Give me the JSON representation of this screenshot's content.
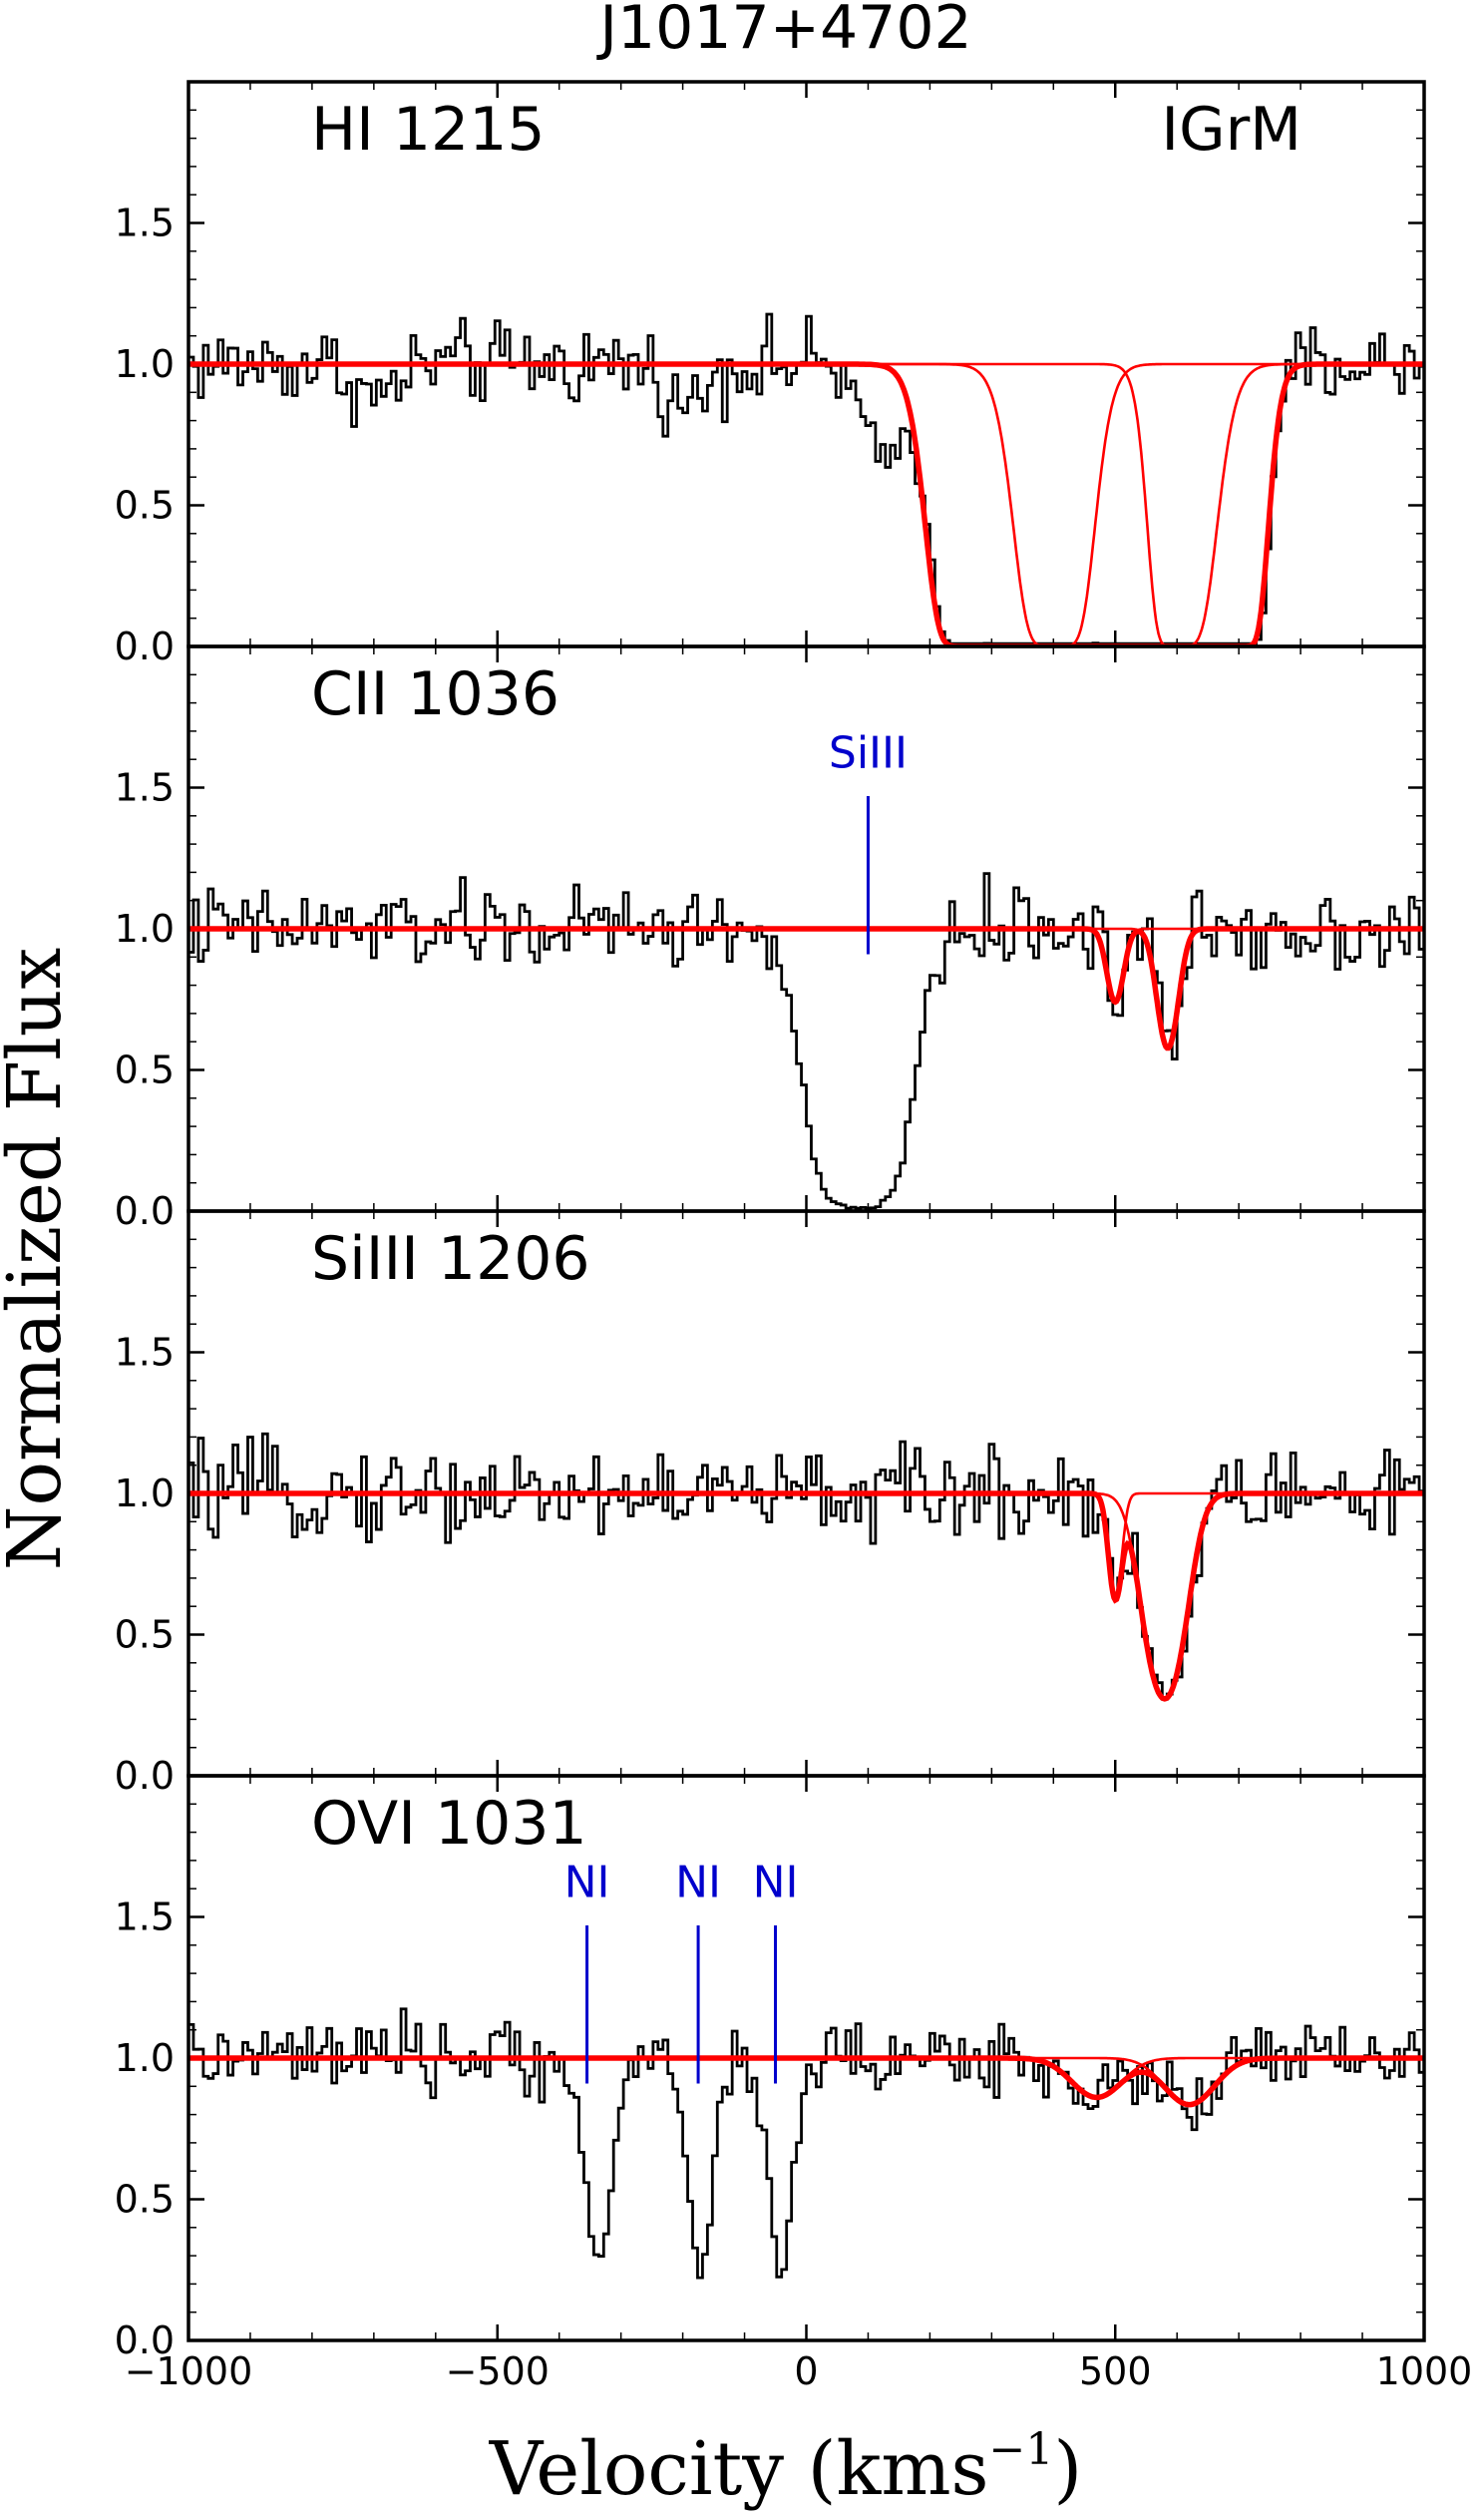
{
  "figure_title": "J1017+4702",
  "ylabel": "Normalized Flux",
  "xlabel": "Velocity (kms",
  "xlabel_sup": "−1",
  "xlabel_close": ")",
  "colors": {
    "data": "#000000",
    "model": "#ff0000",
    "annotation": "#0000cc"
  },
  "chart_data": [
    {
      "type": "line",
      "label": "HI 1215",
      "corner_label": "IGrM",
      "xlim": [
        -1000,
        1000
      ],
      "ylim": [
        0,
        2
      ],
      "yticks": [
        "0.0",
        "0.5",
        "1.0",
        "1.5"
      ],
      "xticks": [],
      "noise": 0.09,
      "absorption_data": [
        {
          "v": -700,
          "depth": 0.12,
          "width": 45
        },
        {
          "v": -200,
          "depth": 0.15,
          "width": 40
        },
        {
          "v": 120,
          "depth": 0.35,
          "width": 45
        }
      ],
      "components": [
        {
          "v": 330,
          "tau": 40,
          "b": 70
        },
        {
          "v": 500,
          "tau": 60,
          "b": 80
        },
        {
          "v": 650,
          "tau": 40,
          "b": 50
        }
      ],
      "markers": []
    },
    {
      "type": "line",
      "label": "CII 1036",
      "corner_label": "",
      "xlim": [
        -1000,
        1000
      ],
      "ylim": [
        0,
        2
      ],
      "yticks": [
        "0.0",
        "0.5",
        "1.0",
        "1.5"
      ],
      "xticks": [],
      "noise": 0.09,
      "absorption_data": [
        {
          "v": 80,
          "depth": 1.0,
          "width": 95,
          "saturated": true
        }
      ],
      "components": [
        {
          "v": 500,
          "tau": 0.3,
          "b": 18
        },
        {
          "v": 585,
          "tau": 0.55,
          "b": 22
        }
      ],
      "markers": [
        {
          "v": 100,
          "label": "SiIII"
        }
      ]
    },
    {
      "type": "line",
      "label": "SiIII 1206",
      "corner_label": "",
      "xlim": [
        -1000,
        1000
      ],
      "ylim": [
        0,
        2
      ],
      "yticks": [
        "0.0",
        "0.5",
        "1.0",
        "1.5"
      ],
      "xticks": [],
      "noise": 0.1,
      "absorption_data": [],
      "components": [
        {
          "v": 500,
          "tau": 0.45,
          "b": 14
        },
        {
          "v": 580,
          "tau": 1.3,
          "b": 40
        }
      ],
      "markers": []
    },
    {
      "type": "line",
      "label": "OVI 1031",
      "corner_label": "",
      "xlim": [
        -1000,
        1000
      ],
      "ylim": [
        0,
        2
      ],
      "yticks": [
        "0.0",
        "0.5",
        "1.0",
        "1.5"
      ],
      "xticks": [
        "−1000",
        "−500",
        "0",
        "500",
        "1000"
      ],
      "xtick_values": [
        -1000,
        -500,
        0,
        500,
        1000
      ],
      "noise": 0.08,
      "absorption_data": [
        {
          "v": -340,
          "depth": 0.75,
          "width": 28
        },
        {
          "v": -175,
          "depth": 0.75,
          "width": 28
        },
        {
          "v": -45,
          "depth": 0.78,
          "width": 26
        }
      ],
      "components": [
        {
          "v": 470,
          "tau": 0.15,
          "b": 55
        },
        {
          "v": 620,
          "tau": 0.18,
          "b": 55
        }
      ],
      "markers": [
        {
          "v": -355,
          "label": "NI"
        },
        {
          "v": -175,
          "label": "NI"
        },
        {
          "v": -50,
          "label": "NI"
        }
      ]
    }
  ]
}
